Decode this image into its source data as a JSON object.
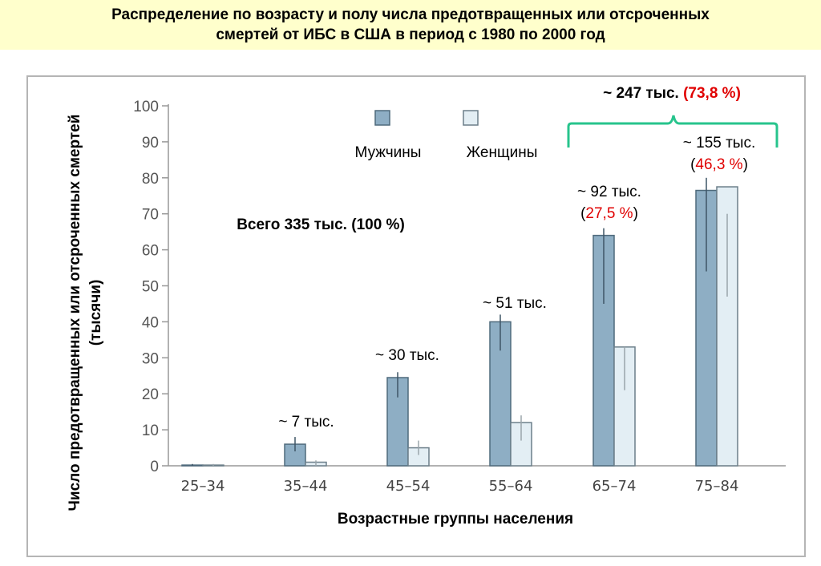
{
  "title_lines": [
    "Распределение по возрасту и полу числа предотвращенных или отсроченных",
    "смертей от ИБС в США в период с 1980 по 2000 год"
  ],
  "colors": {
    "men": "#8eaec4",
    "women": "#e3eef4",
    "brace": "#27c48c",
    "percent": "#e00000",
    "page_background": "#ffffcc"
  },
  "chart_data": {
    "type": "bar",
    "categories": [
      "25–34",
      "35–44",
      "45–54",
      "55–64",
      "65–74",
      "75–84"
    ],
    "series": [
      {
        "name": "Мужчины",
        "values": [
          0.2,
          6,
          24.5,
          40,
          64,
          76.5
        ],
        "err_low": [
          0,
          4,
          19,
          32,
          45,
          54
        ],
        "err_high": [
          0.5,
          8,
          26,
          42,
          66,
          80
        ]
      },
      {
        "name": "Женщины",
        "values": [
          0.2,
          1,
          5,
          12,
          33,
          77.5
        ],
        "err_low": [
          0,
          0,
          3,
          7,
          21,
          47
        ],
        "err_high": [
          0.5,
          1.5,
          7,
          14,
          33,
          70
        ]
      }
    ],
    "xlabel": "Возрастные группы населения",
    "ylabel_lines": [
      "Число предотвращенных или отсроченных смертей",
      "(тысячи)"
    ],
    "ylim": [
      0,
      100
    ],
    "yticks": [
      0,
      10,
      20,
      30,
      40,
      50,
      60,
      70,
      80,
      90,
      100
    ],
    "legend_placement": "top-center",
    "total_label": "Всего 335 тыс. (100 %)",
    "annotations": [
      {
        "category": "35–44",
        "text": "~  7 тыс."
      },
      {
        "category": "45–54",
        "text": "~  30 тыс."
      },
      {
        "category": "55–64",
        "text": "~ 51 тыс."
      },
      {
        "category": "65–74",
        "prefix": "~  92 тыс.",
        "percent": "27,5 %"
      },
      {
        "category": "75–84",
        "prefix": "~ 155 тыс.",
        "percent": "46,3 %"
      }
    ],
    "brace": {
      "from": "65–74",
      "to": "75–84",
      "value": "~ 247 тыс.",
      "percent": "(73,8 %)"
    }
  }
}
